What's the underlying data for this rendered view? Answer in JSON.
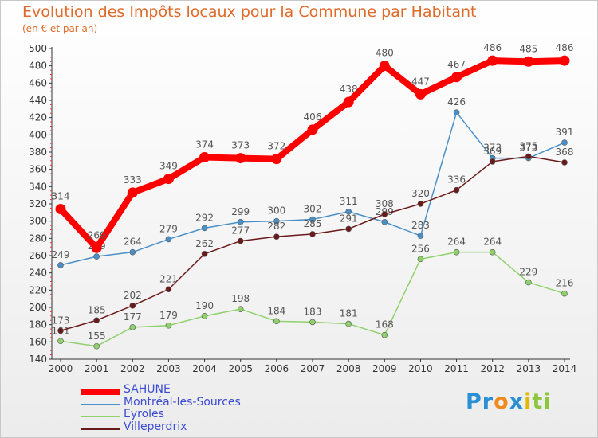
{
  "chart_data": {
    "type": "line",
    "title": "Evolution des Impôts locaux pour la Commune par Habitant",
    "subtitle": "(en € et par an)",
    "x": [
      "2000",
      "2001",
      "2002",
      "2003",
      "2004",
      "2005",
      "2006",
      "2007",
      "2008",
      "2009",
      "2010",
      "2011",
      "2012",
      "2013",
      "2014"
    ],
    "ylim": [
      140,
      500
    ],
    "yticks": [
      140,
      160,
      180,
      200,
      220,
      240,
      260,
      280,
      300,
      320,
      340,
      360,
      380,
      400,
      420,
      440,
      460,
      480,
      500
    ],
    "grid": false,
    "legend_position": "bottom-left",
    "series": [
      {
        "name": "SAHUNE",
        "color": "#ff0000",
        "values": [
          314,
          269,
          333,
          349,
          374,
          373,
          372,
          406,
          438,
          480,
          447,
          467,
          486,
          485,
          486
        ]
      },
      {
        "name": "Montréal-les-Sources",
        "color": "#4a90c8",
        "values": [
          249,
          259,
          264,
          279,
          292,
          299,
          300,
          302,
          311,
          299,
          283,
          426,
          373,
          373,
          391
        ]
      },
      {
        "name": "Eyroles",
        "color": "#8fd16a",
        "values": [
          161,
          155,
          177,
          179,
          190,
          198,
          184,
          183,
          181,
          168,
          256,
          264,
          264,
          229,
          216
        ]
      },
      {
        "name": "Villeperdrix",
        "color": "#6b1a1a",
        "values": [
          173,
          185,
          202,
          221,
          262,
          277,
          282,
          285,
          291,
          308,
          320,
          336,
          369,
          375,
          368
        ]
      }
    ]
  },
  "legend_text_color": "#3b4bd4",
  "logo": {
    "text": "Proxiti",
    "letters": [
      "P",
      "r",
      "o",
      "x",
      "i",
      "t",
      "i"
    ],
    "colors": [
      "#2a8fd4",
      "#2a8fd4",
      "#f08a1c",
      "#2a8fd4",
      "#e0b800",
      "#8cc63f",
      "#8cc63f"
    ]
  }
}
